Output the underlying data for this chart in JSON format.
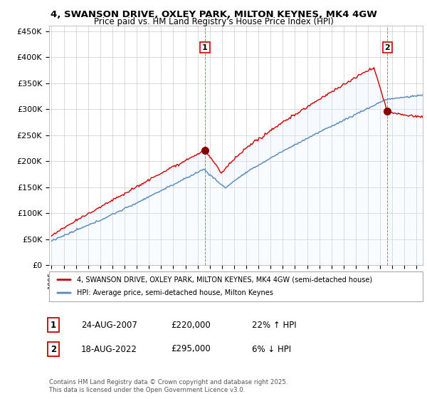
{
  "title": "4, SWANSON DRIVE, OXLEY PARK, MILTON KEYNES, MK4 4GW",
  "subtitle": "Price paid vs. HM Land Registry's House Price Index (HPI)",
  "legend_line1": "4, SWANSON DRIVE, OXLEY PARK, MILTON KEYNES, MK4 4GW (semi-detached house)",
  "legend_line2": "HPI: Average price, semi-detached house, Milton Keynes",
  "sale1_label": "1",
  "sale1_date": "24-AUG-2007",
  "sale1_price": "£220,000",
  "sale1_hpi": "22% ↑ HPI",
  "sale1_year": 2007.6,
  "sale1_value": 220000,
  "sale2_label": "2",
  "sale2_date": "18-AUG-2022",
  "sale2_price": "£295,000",
  "sale2_hpi": "6% ↓ HPI",
  "sale2_year": 2022.6,
  "sale2_value": 295000,
  "footer": "Contains HM Land Registry data © Crown copyright and database right 2025.\nThis data is licensed under the Open Government Licence v3.0.",
  "red_color": "#cc0000",
  "blue_color": "#5588bb",
  "fill_color": "#ddeeff",
  "ylim": [
    0,
    460000
  ],
  "xlim_start": 1994.8,
  "xlim_end": 2025.5,
  "background_color": "#ffffff",
  "grid_color": "#cccccc"
}
